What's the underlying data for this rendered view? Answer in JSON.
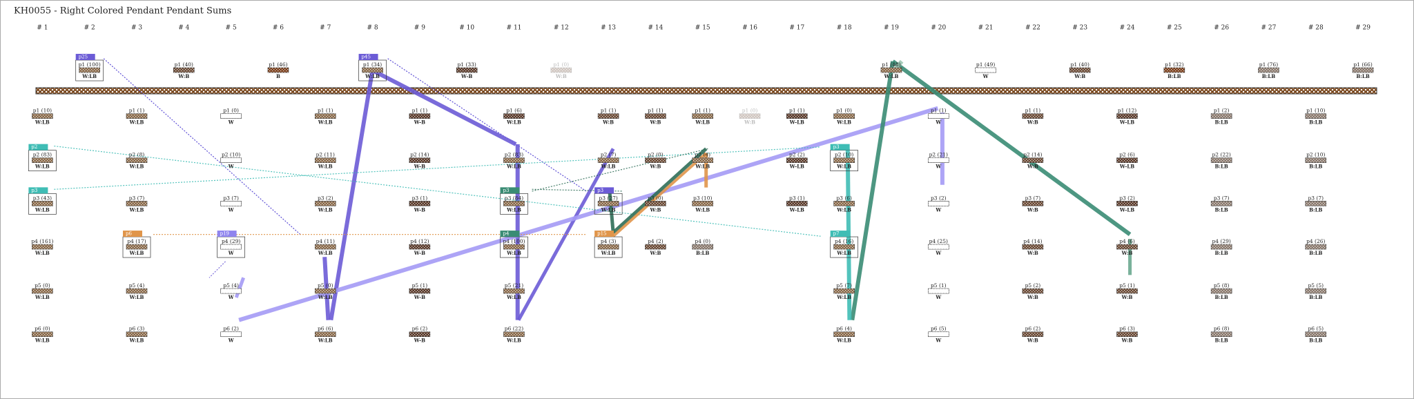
{
  "title": "KH0055 - Right Colored Pendant Pendant Sums",
  "columns": [
    {
      "header": "# 1",
      "pendants": [
        {
          "label": "p1 (10)",
          "colors": "W:LB",
          "fill": "#8a6a4a"
        },
        {
          "label": "p2 (83)",
          "colors": "W:LB",
          "fill": "#8a6a4a",
          "tag": {
            "text": "p2",
            "color": "#3fbdb5"
          }
        },
        {
          "label": "p3 (43)",
          "colors": "W:LB",
          "fill": "#8a6a4a",
          "tag": {
            "text": "p3",
            "color": "#3fbdb5"
          }
        },
        {
          "label": "p4 (161)",
          "colors": "W:LB",
          "fill": "#8a6a4a"
        },
        {
          "label": "p5 (0)",
          "colors": "W:LB",
          "fill": "#8a6a4a"
        },
        {
          "label": "p6 (0)",
          "colors": "W:LB",
          "fill": "#8a6a4a"
        }
      ]
    },
    {
      "header": "# 2",
      "top": {
        "label": "p1 (100)",
        "colors": "W:LB",
        "fill": "#8a6a4a",
        "tag": {
          "text": "p25",
          "color": "#6b5bd6"
        }
      },
      "pendants": []
    },
    {
      "header": "# 3",
      "pendants": [
        {
          "label": "p1 (1)",
          "colors": "W:LB",
          "fill": "#8a6a4a"
        },
        {
          "label": "p2 (8)",
          "colors": "W:LB",
          "fill": "#8a6a4a"
        },
        {
          "label": "p3 (7)",
          "colors": "W:LB",
          "fill": "#8a6a4a"
        },
        {
          "label": "p4 (17)",
          "colors": "W:LB",
          "fill": "#8a6a4a",
          "tag": {
            "text": "p6",
            "color": "#e0954a"
          }
        },
        {
          "label": "p5 (4)",
          "colors": "W:LB",
          "fill": "#8a6a4a"
        },
        {
          "label": "p6 (3)",
          "colors": "W:LB",
          "fill": "#8a6a4a"
        }
      ]
    },
    {
      "header": "# 4",
      "top": {
        "label": "p1 (40)",
        "colors": "W:B",
        "fill": "#6b4a35"
      },
      "pendants": []
    },
    {
      "header": "# 5",
      "pendants": [
        {
          "label": "p1 (0)",
          "colors": "W",
          "fill": "#ffffff"
        },
        {
          "label": "p2 (10)",
          "colors": "W",
          "fill": "#ffffff"
        },
        {
          "label": "p3 (7)",
          "colors": "W",
          "fill": "#ffffff"
        },
        {
          "label": "p4 (29)",
          "colors": "W",
          "fill": "#ffffff",
          "tag": {
            "text": "p19",
            "color": "#8f84ee"
          }
        },
        {
          "label": "p5 (4)",
          "colors": "W",
          "fill": "#ffffff"
        },
        {
          "label": "p6 (2)",
          "colors": "W",
          "fill": "#ffffff"
        }
      ]
    },
    {
      "header": "# 6",
      "top": {
        "label": "p1 (46)",
        "colors": "B",
        "fill": "#7a3e1a"
      },
      "pendants": []
    },
    {
      "header": "# 7",
      "pendants": [
        {
          "label": "p1 (1)",
          "colors": "W:LB",
          "fill": "#8a6a4a"
        },
        {
          "label": "p2 (11)",
          "colors": "W:LB",
          "fill": "#8a6a4a"
        },
        {
          "label": "p3 (2)",
          "colors": "W:LB",
          "fill": "#8a6a4a"
        },
        {
          "label": "p4 (11)",
          "colors": "W:LB",
          "fill": "#8a6a4a"
        },
        {
          "label": "p5 (0)",
          "colors": "W:LB",
          "fill": "#8a6a4a"
        },
        {
          "label": "p6 (6)",
          "colors": "W:LB",
          "fill": "#8a6a4a"
        }
      ]
    },
    {
      "header": "# 8",
      "top": {
        "label": "p1 (34)",
        "colors": "W:LB",
        "fill": "#8a6a4a",
        "tag": {
          "text": "p45",
          "color": "#6b5bd6"
        }
      },
      "pendants": []
    },
    {
      "header": "# 9",
      "pendants": [
        {
          "label": "p1 (1)",
          "colors": "W-B",
          "fill": "#5a3a2a"
        },
        {
          "label": "p2 (14)",
          "colors": "W-B",
          "fill": "#5a3a2a"
        },
        {
          "label": "p3 (1)",
          "colors": "W-B",
          "fill": "#5a3a2a"
        },
        {
          "label": "p4 (12)",
          "colors": "W-B",
          "fill": "#5a3a2a"
        },
        {
          "label": "p5 (1)",
          "colors": "W-B",
          "fill": "#5a3a2a"
        },
        {
          "label": "p6 (2)",
          "colors": "W-B",
          "fill": "#5a3a2a"
        }
      ]
    },
    {
      "header": "# 10",
      "top": {
        "label": "p1 (33)",
        "colors": "W-B",
        "fill": "#5a3a2a"
      },
      "pendants": []
    },
    {
      "header": "# 11",
      "pendants": [
        {
          "label": "p1 (6)",
          "colors": "W:LB",
          "fill": "#5a3a2a"
        },
        {
          "label": "p2 (83)",
          "colors": "W:LB",
          "fill": "#8a6a4a"
        },
        {
          "label": "p3 (84)",
          "colors": "W:LB",
          "fill": "#8a6a4a",
          "tag": {
            "text": "p3",
            "color": "#3a8c74"
          }
        },
        {
          "label": "p4 (100)",
          "colors": "W:LB",
          "fill": "#8a6a4a",
          "tag": {
            "text": "p4",
            "color": "#3a8c74"
          }
        },
        {
          "label": "p5 (21)",
          "colors": "W:LB",
          "fill": "#8a6a4a"
        },
        {
          "label": "p6 (22)",
          "colors": "W:LB",
          "fill": "#8a6a4a"
        }
      ]
    },
    {
      "header": "# 12",
      "top": {
        "label": "p1 (0)",
        "colors": "W:B",
        "fill": "#6b4a35",
        "faded": true
      },
      "pendants": []
    },
    {
      "header": "# 13",
      "pendants": [
        {
          "label": "p1 (1)",
          "colors": "W:B",
          "fill": "#6b4a35"
        },
        {
          "label": "p2 (7)",
          "colors": "W:LB",
          "fill": "#8a6a4a"
        },
        {
          "label": "p3 (27)",
          "colors": "W:LB",
          "fill": "#8a6a4a",
          "tag": {
            "text": "p3",
            "color": "#6b5bd6"
          }
        },
        {
          "label": "p4 (3)",
          "colors": "W:LB",
          "fill": "#8a6a4a",
          "tag": {
            "text": "p15",
            "color": "#e0954a"
          }
        }
      ]
    },
    {
      "header": "# 14",
      "pendants": [
        {
          "label": "p1 (1)",
          "colors": "W:B",
          "fill": "#6b4a35"
        },
        {
          "label": "p2 (0)",
          "colors": "W:B",
          "fill": "#6b4a35"
        },
        {
          "label": "p3 (0)",
          "colors": "W:B",
          "fill": "#6b4a35"
        },
        {
          "label": "p4 (2)",
          "colors": "W:B",
          "fill": "#6b4a35"
        }
      ]
    },
    {
      "header": "# 15",
      "pendants": [
        {
          "label": "p1 (1)",
          "colors": "W:LB",
          "fill": "#8a6a4a"
        },
        {
          "label": "p2 (4)",
          "colors": "W:LB",
          "fill": "#8a6a4a"
        },
        {
          "label": "p3 (10)",
          "colors": "W:LB",
          "fill": "#8a6a4a"
        },
        {
          "label": "p4 (0)",
          "colors": "B:LB",
          "fill": "#8b7a6e"
        }
      ]
    },
    {
      "header": "# 16",
      "pendants": [
        {
          "label": "p1 (0)",
          "colors": "W:B",
          "fill": "#6b4a35",
          "faded": true
        }
      ]
    },
    {
      "header": "# 17",
      "pendants": [
        {
          "label": "p1 (1)",
          "colors": "W-LB",
          "fill": "#5b3b2b"
        },
        {
          "label": "p2 (2)",
          "colors": "W-LB",
          "fill": "#5b3b2b"
        },
        {
          "label": "p3 (1)",
          "colors": "W-LB",
          "fill": "#5b3b2b"
        }
      ]
    },
    {
      "header": "# 18",
      "pendants": [
        {
          "label": "p1 (0)",
          "colors": "W:LB",
          "fill": "#8a6a4a"
        },
        {
          "label": "p2 (10)",
          "colors": "W:LB",
          "fill": "#8a6a4a",
          "tag": {
            "text": "p3",
            "color": "#3fbdb5"
          }
        },
        {
          "label": "p3 (6)",
          "colors": "W:LB",
          "fill": "#8a6a4a"
        },
        {
          "label": "p4 (16)",
          "colors": "W:LB",
          "fill": "#8a6a4a",
          "tag": {
            "text": "p7",
            "color": "#3fbdb5"
          }
        },
        {
          "label": "p5 (7)",
          "colors": "W:LB",
          "fill": "#8a6a4a"
        },
        {
          "label": "p6 (4)",
          "colors": "W:LB",
          "fill": "#8a6a4a"
        }
      ]
    },
    {
      "header": "# 19",
      "top": {
        "label": "p1 (48)",
        "colors": "W:LB",
        "fill": "#8a6a4a"
      },
      "pendants": []
    },
    {
      "header": "# 20",
      "pendants": [
        {
          "label": "p1 (1)",
          "colors": "W",
          "fill": "#ffffff"
        },
        {
          "label": "p2 (21)",
          "colors": "W",
          "fill": "#ffffff"
        },
        {
          "label": "p3 (2)",
          "colors": "W",
          "fill": "#ffffff"
        },
        {
          "label": "p4 (25)",
          "colors": "W",
          "fill": "#ffffff"
        },
        {
          "label": "p5 (1)",
          "colors": "W",
          "fill": "#ffffff"
        },
        {
          "label": "p6 (5)",
          "colors": "W",
          "fill": "#ffffff"
        }
      ]
    },
    {
      "header": "# 21",
      "top": {
        "label": "p1 (49)",
        "colors": "W",
        "fill": "#ffffff"
      },
      "pendants": []
    },
    {
      "header": "# 22",
      "pendants": [
        {
          "label": "p1 (1)",
          "colors": "W:B",
          "fill": "#6b4a35"
        },
        {
          "label": "p2 (14)",
          "colors": "W:B",
          "fill": "#6b4a35"
        },
        {
          "label": "p3 (7)",
          "colors": "W:B",
          "fill": "#6b4a35"
        },
        {
          "label": "p4 (14)",
          "colors": "W:B",
          "fill": "#6b4a35"
        },
        {
          "label": "p5 (2)",
          "colors": "W:B",
          "fill": "#6b4a35"
        },
        {
          "label": "p6 (2)",
          "colors": "W:B",
          "fill": "#6b4a35"
        }
      ]
    },
    {
      "header": "# 23",
      "top": {
        "label": "p1 (40)",
        "colors": "W:B",
        "fill": "#6b4a35"
      },
      "pendants": []
    },
    {
      "header": "# 24",
      "pendants": [
        {
          "label": "p1 (12)",
          "colors": "W-LB",
          "fill": "#5b3b2b"
        },
        {
          "label": "p2 (6)",
          "colors": "W-LB",
          "fill": "#5b3b2b"
        },
        {
          "label": "p3 (2)",
          "colors": "W-LB",
          "fill": "#5b3b2b"
        },
        {
          "label": "p4 (6)",
          "colors": "W:B",
          "fill": "#6b4a35"
        },
        {
          "label": "p5 (1)",
          "colors": "W:B",
          "fill": "#6b4a35"
        },
        {
          "label": "p6 (3)",
          "colors": "W:B",
          "fill": "#6b4a35"
        }
      ]
    },
    {
      "header": "# 25",
      "top": {
        "label": "p1 (32)",
        "colors": "B:LB",
        "fill": "#7a3e1a"
      },
      "pendants": []
    },
    {
      "header": "# 26",
      "pendants": [
        {
          "label": "p1 (2)",
          "colors": "B:LB",
          "fill": "#8b7a6e"
        },
        {
          "label": "p2 (22)",
          "colors": "B:LB",
          "fill": "#8b7a6e"
        },
        {
          "label": "p3 (7)",
          "colors": "B:LB",
          "fill": "#8b7a6e"
        },
        {
          "label": "p4 (29)",
          "colors": "B:LB",
          "fill": "#8b7a6e"
        },
        {
          "label": "p5 (8)",
          "colors": "B:LB",
          "fill": "#8b7a6e"
        },
        {
          "label": "p6 (8)",
          "colors": "B:LB",
          "fill": "#8b7a6e"
        }
      ]
    },
    {
      "header": "# 27",
      "top": {
        "label": "p1 (76)",
        "colors": "B:LB",
        "fill": "#8b7a6e"
      },
      "pendants": []
    },
    {
      "header": "# 28",
      "pendants": [
        {
          "label": "p1 (10)",
          "colors": "B:LB",
          "fill": "#8b7a6e"
        },
        {
          "label": "p2 (10)",
          "colors": "B:LB",
          "fill": "#8b7a6e"
        },
        {
          "label": "p3 (7)",
          "colors": "B:LB",
          "fill": "#8b7a6e"
        },
        {
          "label": "p4 (26)",
          "colors": "B:LB",
          "fill": "#8b7a6e"
        },
        {
          "label": "p5 (5)",
          "colors": "B:LB",
          "fill": "#8b7a6e"
        },
        {
          "label": "p6 (5)",
          "colors": "B:LB",
          "fill": "#8b7a6e"
        }
      ]
    },
    {
      "header": "# 29",
      "top": {
        "label": "p1 (66)",
        "colors": "B:LB",
        "fill": "#8b7a6e"
      },
      "pendants": []
    }
  ]
}
